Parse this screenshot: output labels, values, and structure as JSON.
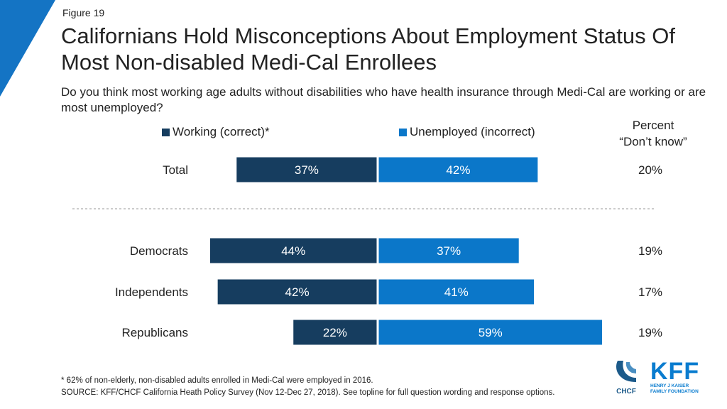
{
  "figure_label": "Figure 19",
  "title": "Californians Hold Misconceptions About Employment Status Of Most Non-disabled Medi-Cal Enrollees",
  "subtitle": "Do you think most working age adults without disabilities who have health insurance through Medi-Cal are working or are most unemployed?",
  "dont_know_header_line1": "Percent",
  "dont_know_header_line2": "“Don’t know”",
  "footnote": "* 62% of non-elderly, non-disabled adults enrolled in Medi-Cal were employed in 2016.",
  "source": "SOURCE: KFF/CHCF California Heath Policy Survey (Nov 12-Dec 27, 2018). See topline for full question wording and response options.",
  "logos": {
    "chcf": "CHCF",
    "kff": "KFF",
    "kff_sub_line1": "HENRY J KAISER",
    "kff_sub_line2": "FAMILY FOUNDATION"
  },
  "colors": {
    "working": "#163d5f",
    "unemployed": "#0b77c9",
    "corner_accent": "#1474c4",
    "divider": "#999999"
  },
  "chart_data": {
    "type": "bar",
    "orientation": "horizontal-diverging",
    "categories": [
      "Total",
      "Democrats",
      "Independents",
      "Republicans"
    ],
    "series": [
      {
        "name": "Working (correct)*",
        "values": [
          37,
          44,
          42,
          22
        ]
      },
      {
        "name": "Unemployed (incorrect)",
        "values": [
          42,
          37,
          41,
          59
        ]
      }
    ],
    "dont_know": [
      20,
      19,
      17,
      19
    ],
    "value_suffix": "%",
    "legend_position": "top"
  }
}
